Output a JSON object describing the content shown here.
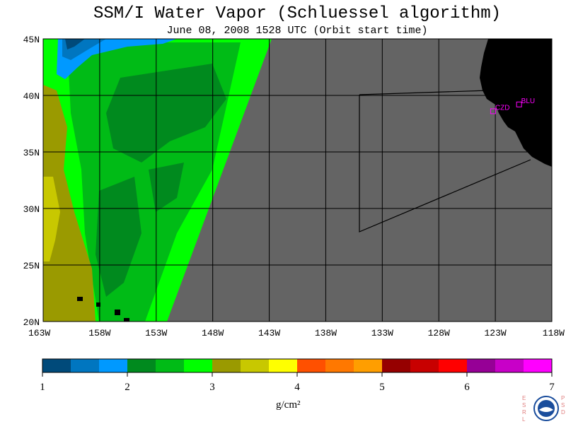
{
  "title": "SSM/I Water Vapor (Schluessel algorithm)",
  "subtitle": "June 08, 2008  1528 UTC  (Orbit start time)",
  "map": {
    "lat_labels": [
      "45N",
      "40N",
      "35N",
      "30N",
      "25N",
      "20N"
    ],
    "lon_labels": [
      "163W",
      "158W",
      "153W",
      "148W",
      "143W",
      "138W",
      "133W",
      "128W",
      "123W",
      "118W"
    ],
    "stations": [
      {
        "name": "CZD",
        "lat": 38.6,
        "lon": -123.2
      },
      {
        "name": "BLU",
        "lat": 39.2,
        "lon": -120.9
      }
    ],
    "colors": {
      "ocean_nodata": "#646464",
      "land": "#000000",
      "grid": "#000000",
      "station": "#ff00ff"
    }
  },
  "colorbar": {
    "ticks": [
      "1",
      "2",
      "3",
      "4",
      "5",
      "6",
      "7"
    ],
    "unit": "g/cm²",
    "colors": [
      "#004a7a",
      "#0076c0",
      "#0099ff",
      "#008a1e",
      "#00bb16",
      "#00ff00",
      "#9a9a00",
      "#c8c800",
      "#ffff00",
      "#ff5000",
      "#ff7800",
      "#ff9e00",
      "#960000",
      "#c80000",
      "#ff0000",
      "#960096",
      "#c800c8",
      "#ff00ff"
    ]
  },
  "logo": {
    "left_text": "ESRL",
    "right_text": "PSD",
    "center_text": "NOAA"
  }
}
